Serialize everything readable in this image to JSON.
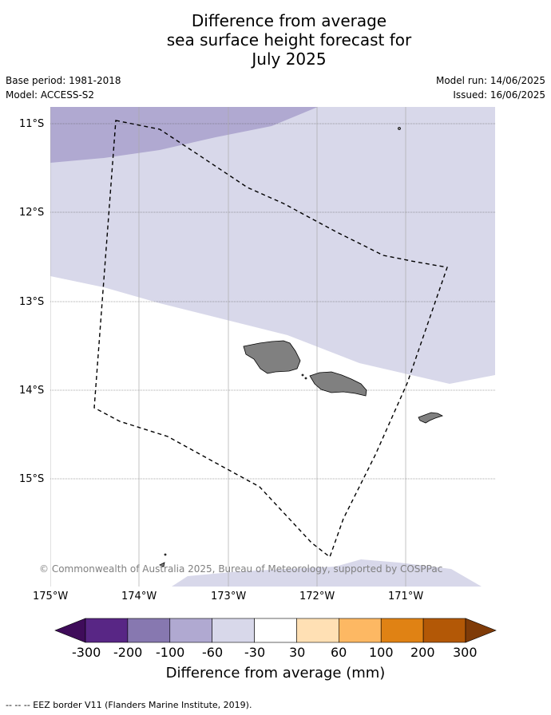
{
  "title": {
    "line1": "Difference from average",
    "line2": "sea surface height forecast for",
    "line3": "July 2025"
  },
  "meta": {
    "base_period": "Base period: 1981-2018",
    "model": "Model: ACCESS-S2",
    "model_run": "Model run: 14/06/2025",
    "issued": "Issued: 16/06/2025"
  },
  "map": {
    "lat_labels": [
      "11°S",
      "12°S",
      "13°S",
      "14°S",
      "15°S"
    ],
    "lon_labels": [
      "175°W",
      "174°W",
      "173°W",
      "172°W",
      "171°W"
    ],
    "copyright": "© Commonwealth of Australia 2025, Bureau of Meteorology, supported by COSPPac",
    "colors": {
      "band_minus100_minus60": "#b0a9d1",
      "band_minus60_minus30": "#d8d8ea",
      "land": "#808080",
      "grid": "#555555",
      "eez_border": "#000000"
    }
  },
  "colorbar": {
    "tick_labels": [
      "-300",
      "-200",
      "-100",
      "-60",
      "-30",
      "30",
      "60",
      "100",
      "200",
      "300"
    ],
    "colors": [
      "#3f0c5a",
      "#582685",
      "#8778b0",
      "#b0a9d1",
      "#d8d8ea",
      "#ffffff",
      "#ffe0b4",
      "#fdb863",
      "#e08214",
      "#b35806",
      "#7f3b08"
    ],
    "label": "Difference from average (mm)"
  },
  "footer": {
    "legend_text": "-- -- -- EEZ border V11 (Flanders Marine Institute, 2019)."
  }
}
